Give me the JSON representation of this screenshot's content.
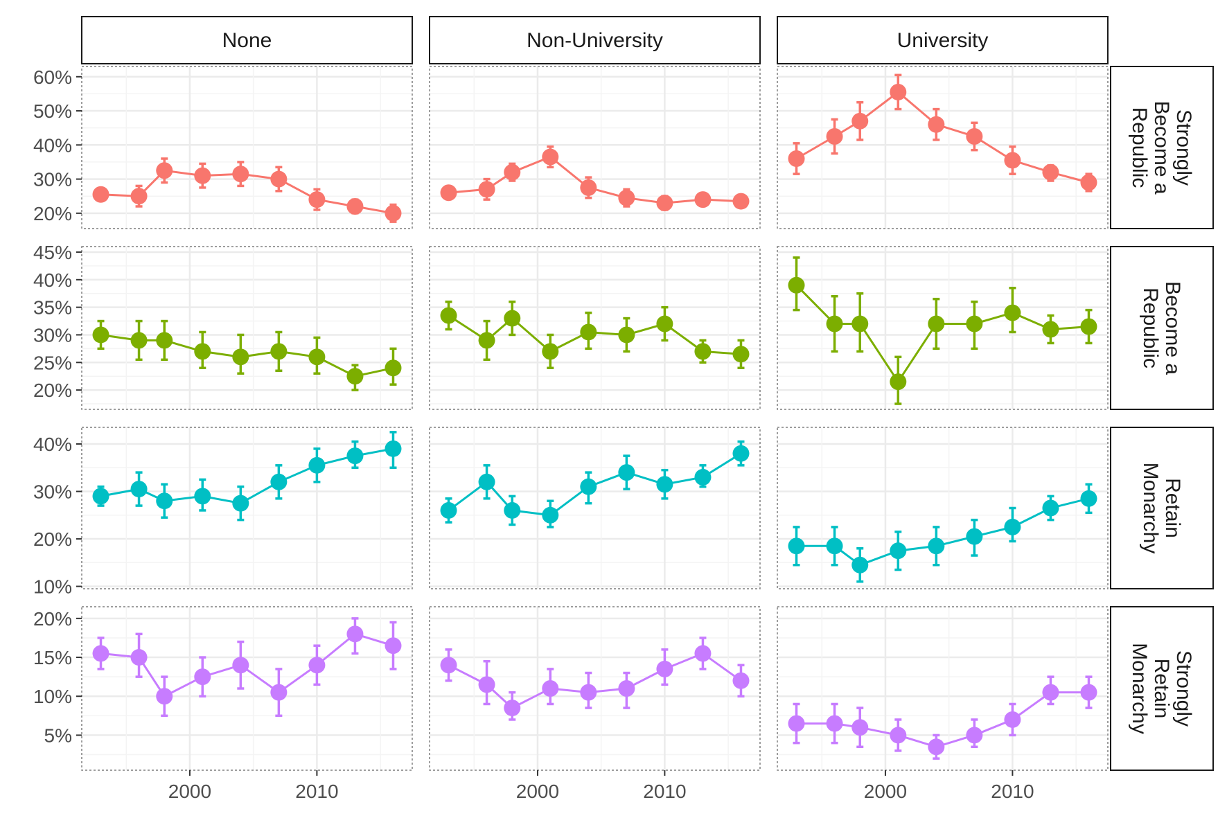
{
  "chart_data": {
    "type": "line",
    "facet_columns": [
      "None",
      "Non-University",
      "University"
    ],
    "facet_rows": [
      {
        "lines": [
          "Strongly",
          "Become a",
          "Republic"
        ],
        "color": "#F8766D",
        "yticks": [
          20,
          30,
          40,
          50,
          60
        ],
        "ylim": [
          15.5,
          63
        ]
      },
      {
        "lines": [
          "Become a",
          "Republic"
        ],
        "color": "#7CAE00",
        "yticks": [
          20,
          25,
          30,
          35,
          40,
          45
        ],
        "ylim": [
          16.5,
          46
        ]
      },
      {
        "lines": [
          "Retain",
          "Monarchy"
        ],
        "color": "#00BFC4",
        "yticks": [
          10,
          20,
          30,
          40
        ],
        "ylim": [
          9.5,
          43.5
        ]
      },
      {
        "lines": [
          "Strongly",
          "Retain",
          "Monarchy"
        ],
        "color": "#C77CFF",
        "yticks": [
          5,
          10,
          15,
          20
        ],
        "ylim": [
          0.5,
          21.5
        ]
      }
    ],
    "x": [
      1993,
      1996,
      1998,
      2001,
      2004,
      2007,
      2010,
      2013,
      2016
    ],
    "xticks": [
      2000,
      2010
    ],
    "xlim": [
      1991.5,
      2017.5
    ],
    "y_tick_suffix": "%",
    "series": [
      [
        {
          "values": [
            25.5,
            25.0,
            32.5,
            31.0,
            31.5,
            30.0,
            24.0,
            22.0,
            20.0
          ],
          "lower": [
            24.0,
            22.0,
            29.0,
            27.5,
            28.0,
            26.5,
            21.0,
            20.0,
            17.5
          ],
          "upper": [
            27.0,
            28.0,
            36.0,
            34.5,
            35.0,
            33.5,
            27.0,
            24.0,
            22.5
          ]
        },
        {
          "values": [
            26.0,
            27.0,
            32.0,
            36.5,
            27.5,
            24.5,
            23.0,
            24.0,
            23.5
          ],
          "lower": [
            24.5,
            24.0,
            29.5,
            33.5,
            24.5,
            22.0,
            21.0,
            22.5,
            22.0
          ],
          "upper": [
            27.5,
            30.0,
            34.5,
            39.5,
            30.5,
            27.0,
            25.0,
            25.5,
            25.0
          ]
        },
        {
          "values": [
            36.0,
            42.5,
            47.0,
            55.5,
            46.0,
            42.5,
            35.5,
            32.0,
            29.0
          ],
          "lower": [
            31.5,
            37.5,
            41.5,
            50.5,
            41.5,
            38.5,
            31.5,
            29.5,
            26.5
          ],
          "upper": [
            40.5,
            47.5,
            52.5,
            60.5,
            50.5,
            46.5,
            39.5,
            34.0,
            31.5
          ]
        }
      ],
      [
        {
          "values": [
            30.0,
            29.0,
            29.0,
            27.0,
            26.0,
            27.0,
            26.0,
            22.5,
            24.0
          ],
          "lower": [
            27.5,
            25.5,
            25.5,
            24.0,
            23.0,
            23.5,
            23.0,
            20.0,
            21.0
          ],
          "upper": [
            32.5,
            32.5,
            32.5,
            30.5,
            30.0,
            30.5,
            29.5,
            24.5,
            27.5
          ]
        },
        {
          "values": [
            33.5,
            29.0,
            33.0,
            27.0,
            30.5,
            30.0,
            32.0,
            27.0,
            26.5
          ],
          "lower": [
            31.0,
            25.5,
            30.0,
            24.0,
            27.5,
            27.0,
            29.0,
            25.0,
            24.0
          ],
          "upper": [
            36.0,
            32.5,
            36.0,
            30.0,
            34.0,
            33.0,
            35.0,
            29.0,
            29.0
          ]
        },
        {
          "values": [
            39.0,
            32.0,
            32.0,
            21.5,
            32.0,
            32.0,
            34.0,
            31.0,
            31.5
          ],
          "lower": [
            34.5,
            27.0,
            27.0,
            17.5,
            27.5,
            27.5,
            30.5,
            28.5,
            28.5
          ],
          "upper": [
            44.0,
            37.0,
            37.5,
            26.0,
            36.5,
            36.0,
            38.5,
            33.5,
            34.5
          ]
        }
      ],
      [
        {
          "values": [
            29.0,
            30.5,
            28.0,
            29.0,
            27.5,
            32.0,
            35.5,
            37.5,
            39.0
          ],
          "lower": [
            27.0,
            27.0,
            24.5,
            26.0,
            24.0,
            28.5,
            32.0,
            35.0,
            35.0
          ],
          "upper": [
            31.0,
            34.0,
            31.5,
            32.5,
            31.0,
            35.5,
            39.0,
            40.5,
            42.5
          ]
        },
        {
          "values": [
            26.0,
            32.0,
            26.0,
            25.0,
            31.0,
            34.0,
            31.5,
            33.0,
            38.0
          ],
          "lower": [
            23.5,
            28.5,
            23.0,
            22.5,
            27.5,
            30.5,
            28.5,
            31.0,
            35.5
          ],
          "upper": [
            28.5,
            35.5,
            29.0,
            28.0,
            34.0,
            37.5,
            34.5,
            35.5,
            40.5
          ]
        },
        {
          "values": [
            18.5,
            18.5,
            14.5,
            17.5,
            18.5,
            20.5,
            22.5,
            26.5,
            28.5
          ],
          "lower": [
            14.5,
            14.5,
            11.0,
            13.5,
            14.5,
            16.5,
            19.5,
            24.0,
            25.5
          ],
          "upper": [
            22.5,
            22.5,
            18.0,
            21.5,
            22.5,
            24.0,
            26.5,
            29.0,
            31.5
          ]
        }
      ],
      [
        {
          "values": [
            15.5,
            15.0,
            10.0,
            12.5,
            14.0,
            10.5,
            14.0,
            18.0,
            16.5
          ],
          "lower": [
            13.5,
            12.5,
            7.5,
            10.0,
            11.0,
            7.5,
            11.5,
            15.5,
            13.5
          ],
          "upper": [
            17.5,
            18.0,
            12.5,
            15.0,
            17.0,
            13.5,
            16.5,
            20.0,
            19.5
          ]
        },
        {
          "values": [
            14.0,
            11.5,
            8.5,
            11.0,
            10.5,
            11.0,
            13.5,
            15.5,
            12.0
          ],
          "lower": [
            12.0,
            9.0,
            7.0,
            9.0,
            8.5,
            8.5,
            11.5,
            13.5,
            10.0
          ],
          "upper": [
            16.0,
            14.5,
            10.5,
            13.5,
            13.0,
            13.0,
            16.0,
            17.5,
            14.0
          ]
        },
        {
          "values": [
            6.5,
            6.5,
            6.0,
            5.0,
            3.5,
            5.0,
            7.0,
            10.5,
            10.5
          ],
          "lower": [
            4.0,
            4.0,
            3.5,
            3.0,
            2.0,
            3.5,
            5.0,
            9.0,
            8.5
          ],
          "upper": [
            9.0,
            9.0,
            8.5,
            7.0,
            5.0,
            7.0,
            9.0,
            12.5,
            12.5
          ]
        }
      ]
    ],
    "grid": true
  }
}
